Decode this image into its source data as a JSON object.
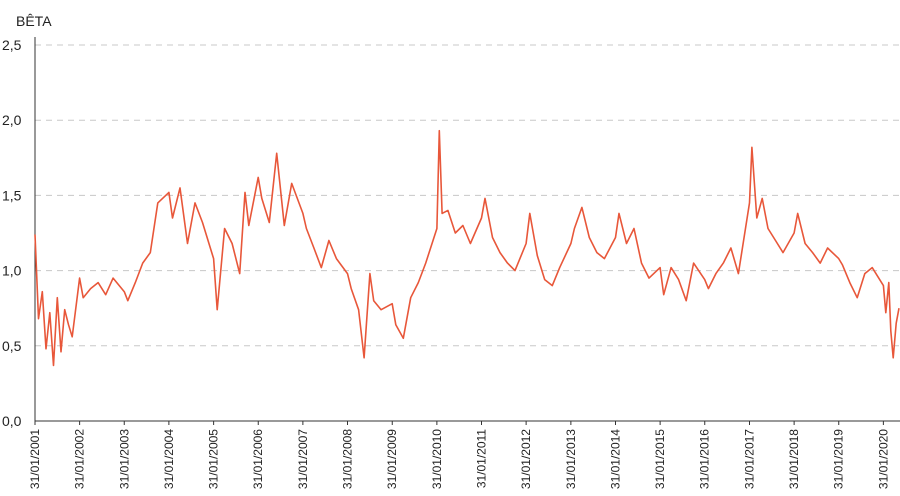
{
  "chart_data": {
    "type": "line",
    "title": "",
    "xlabel": "",
    "ylabel": "BÊTA",
    "ylim": [
      0,
      2.5
    ],
    "y_ticks": [
      "0,0",
      "0,5",
      "1,0",
      "1,5",
      "2,0",
      "2,5"
    ],
    "x_ticks": [
      "31/01/2001",
      "31/01/2002",
      "31/01/2003",
      "31/01/2004",
      "31/01/2005",
      "31/01/2006",
      "31/01/2007",
      "31/01/2008",
      "31/01/2009",
      "31/01/2010",
      "31/01/2011",
      "31/01/2012",
      "31/01/2013",
      "31/01/2014",
      "31/01/2015",
      "31/01/2016",
      "31/01/2017",
      "31/01/2018",
      "31/01/2019",
      "31/01/2020"
    ],
    "grid": "horizontal-dashed",
    "colors": {
      "series": "#e8573a",
      "grid": "#c8c8c8",
      "axis": "#333333",
      "text": "#222222"
    },
    "series": [
      {
        "x": [
          "2001-01-31",
          "2001-03-01",
          "2001-04-01",
          "2001-05-01",
          "2001-06-01",
          "2001-07-01",
          "2001-08-01",
          "2001-09-01",
          "2001-10-01",
          "2001-11-01",
          "2001-12-01",
          "2002-01-31",
          "2002-03-01",
          "2002-05-01",
          "2002-07-01",
          "2002-09-01",
          "2002-11-01",
          "2003-01-31",
          "2003-03-01",
          "2003-05-01",
          "2003-07-01",
          "2003-09-01",
          "2003-11-01",
          "2004-01-31",
          "2004-03-01",
          "2004-05-01",
          "2004-07-01",
          "2004-09-01",
          "2004-11-01",
          "2005-01-31",
          "2005-03-01",
          "2005-05-01",
          "2005-07-01",
          "2005-09-01",
          "2005-10-15",
          "2005-11-15",
          "2006-01-31",
          "2006-03-01",
          "2006-05-01",
          "2006-07-01",
          "2006-09-01",
          "2006-11-01",
          "2007-01-31",
          "2007-03-01",
          "2007-05-01",
          "2007-07-01",
          "2007-09-01",
          "2007-11-01",
          "2008-01-31",
          "2008-03-01",
          "2008-05-01",
          "2008-06-15",
          "2008-08-01",
          "2008-09-01",
          "2008-11-01",
          "2009-01-31",
          "2009-03-01",
          "2009-05-01",
          "2009-07-01",
          "2009-09-01",
          "2009-11-01",
          "2010-01-31",
          "2010-02-20",
          "2010-03-15",
          "2010-05-01",
          "2010-07-01",
          "2010-09-01",
          "2010-11-01",
          "2011-01-31",
          "2011-03-01",
          "2011-05-01",
          "2011-07-01",
          "2011-09-01",
          "2011-11-01",
          "2012-01-31",
          "2012-03-01",
          "2012-05-01",
          "2012-07-01",
          "2012-09-01",
          "2012-11-01",
          "2013-01-31",
          "2013-03-01",
          "2013-05-01",
          "2013-07-01",
          "2013-09-01",
          "2013-11-01",
          "2014-01-31",
          "2014-03-01",
          "2014-05-01",
          "2014-07-01",
          "2014-09-01",
          "2014-11-01",
          "2015-01-31",
          "2015-03-01",
          "2015-05-01",
          "2015-07-01",
          "2015-09-01",
          "2015-11-01",
          "2016-01-31",
          "2016-03-01",
          "2016-05-01",
          "2016-07-01",
          "2016-09-01",
          "2016-11-01",
          "2017-01-31",
          "2017-02-20",
          "2017-04-01",
          "2017-05-15",
          "2017-07-01",
          "2017-09-01",
          "2017-11-01",
          "2018-01-31",
          "2018-03-01",
          "2018-05-01",
          "2018-07-01",
          "2018-09-01",
          "2018-11-01",
          "2019-01-31",
          "2019-03-01",
          "2019-05-01",
          "2019-07-01",
          "2019-09-01",
          "2019-11-01",
          "2020-01-31",
          "2020-02-20",
          "2020-03-15",
          "2020-04-01",
          "2020-04-20",
          "2020-05-15",
          "2020-06-15"
        ],
        "values": [
          1.24,
          0.68,
          0.86,
          0.48,
          0.72,
          0.37,
          0.82,
          0.46,
          0.74,
          0.64,
          0.56,
          0.95,
          0.82,
          0.88,
          0.92,
          0.84,
          0.95,
          0.86,
          0.8,
          0.92,
          1.05,
          1.12,
          1.45,
          1.52,
          1.35,
          1.55,
          1.18,
          1.45,
          1.32,
          1.08,
          0.74,
          1.28,
          1.18,
          0.98,
          1.52,
          1.3,
          1.62,
          1.48,
          1.32,
          1.78,
          1.3,
          1.58,
          1.38,
          1.28,
          1.15,
          1.02,
          1.2,
          1.08,
          0.98,
          0.88,
          0.74,
          0.42,
          0.98,
          0.8,
          0.74,
          0.78,
          0.64,
          0.55,
          0.82,
          0.92,
          1.05,
          1.28,
          1.93,
          1.38,
          1.4,
          1.25,
          1.3,
          1.18,
          1.35,
          1.48,
          1.22,
          1.12,
          1.05,
          1.0,
          1.18,
          1.38,
          1.1,
          0.94,
          0.9,
          1.02,
          1.18,
          1.28,
          1.42,
          1.22,
          1.12,
          1.08,
          1.22,
          1.38,
          1.18,
          1.28,
          1.05,
          0.95,
          1.02,
          0.84,
          1.02,
          0.94,
          0.8,
          1.05,
          0.94,
          0.88,
          0.98,
          1.05,
          1.15,
          0.98,
          1.45,
          1.82,
          1.35,
          1.48,
          1.28,
          1.2,
          1.12,
          1.25,
          1.38,
          1.18,
          1.12,
          1.05,
          1.15,
          1.08,
          1.04,
          0.92,
          0.82,
          0.98,
          1.02,
          0.9,
          0.72,
          0.92,
          0.6,
          0.42,
          0.65,
          0.75
        ]
      }
    ]
  }
}
